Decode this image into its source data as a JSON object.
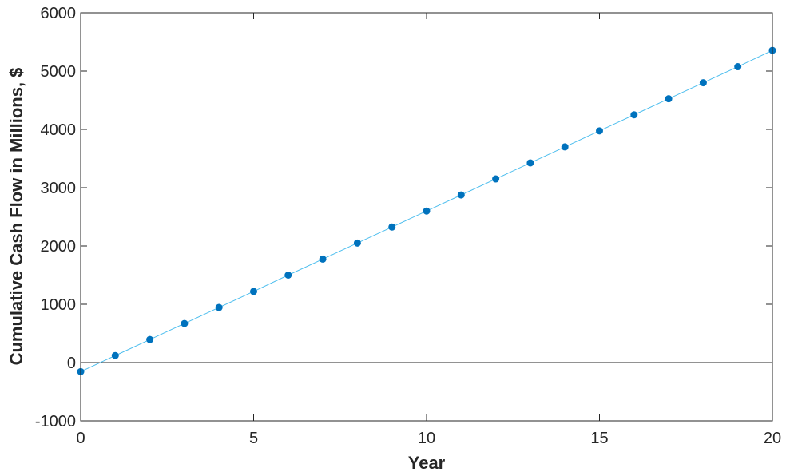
{
  "chart_data": {
    "type": "line",
    "title": "",
    "xlabel": "Year",
    "ylabel": "Cumulative Cash Flow in Millions, $",
    "xlim": [
      0,
      20
    ],
    "ylim": [
      -1000,
      6000
    ],
    "x_ticks": [
      0,
      5,
      10,
      15,
      20
    ],
    "y_ticks": [
      -1000,
      0,
      1000,
      2000,
      3000,
      4000,
      5000,
      6000
    ],
    "grid": false,
    "legend": "none",
    "zero_line": true,
    "series": [
      {
        "marker": "circle",
        "line_color": "#4DBEEE",
        "marker_color": "#0072BD",
        "x": [
          0,
          1,
          2,
          3,
          4,
          5,
          6,
          7,
          8,
          9,
          10,
          11,
          12,
          13,
          14,
          15,
          16,
          17,
          18,
          19,
          20
        ],
        "y": [
          -155,
          120,
          395,
          670,
          945,
          1220,
          1500,
          1775,
          2050,
          2325,
          2600,
          2875,
          3150,
          3425,
          3700,
          3975,
          4250,
          4525,
          4800,
          5075,
          5355
        ]
      }
    ]
  }
}
